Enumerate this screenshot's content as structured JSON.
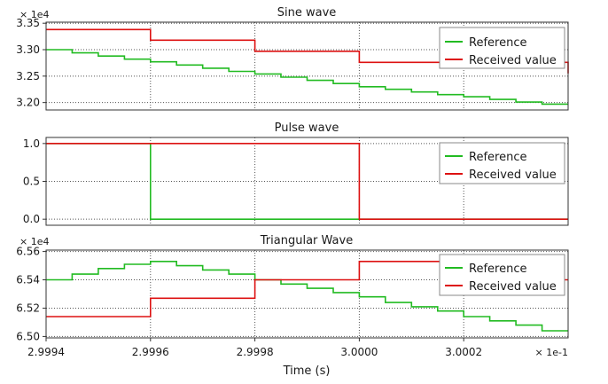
{
  "x_exponent_label": "× 1e-1",
  "x_label": "Time (s)",
  "x_ticks": [
    "2.9994",
    "2.9996",
    "2.9998",
    "3.0000",
    "3.0002"
  ],
  "x_tick_values": [
    2.9994,
    2.9996,
    2.9998,
    3.0,
    3.0002
  ],
  "x_range": [
    2.9994,
    3.0004
  ],
  "colors": {
    "reference": "#22bb22",
    "received": "#dd1111"
  },
  "chart_data": [
    {
      "type": "line",
      "title": "Sine wave",
      "exponent_label": "× 1e4",
      "ylim": [
        3.186,
        3.352
      ],
      "y_ticks": [
        "3.35",
        "3.30",
        "3.25",
        "3.20"
      ],
      "y_tick_values": [
        3.35,
        3.3,
        3.25,
        3.2
      ],
      "legend": [
        "Reference",
        "Received value"
      ],
      "legend_position": "top-right",
      "series": [
        {
          "name": "Reference",
          "step": true,
          "x": [
            2.9994,
            2.99945,
            2.9995,
            2.99955,
            2.9996,
            2.99965,
            2.9997,
            2.99975,
            2.9998,
            2.99985,
            2.9999,
            2.99995,
            3.0,
            3.00005,
            3.0001,
            3.00015,
            3.0002,
            3.00025,
            3.0003,
            3.00035
          ],
          "values": [
            3.3,
            3.294,
            3.288,
            3.282,
            3.277,
            3.271,
            3.265,
            3.259,
            3.254,
            3.248,
            3.242,
            3.236,
            3.23,
            3.225,
            3.22,
            3.215,
            3.211,
            3.206,
            3.201,
            3.197
          ]
        },
        {
          "name": "Received value",
          "step": true,
          "x": [
            2.9994,
            2.9996,
            2.9998,
            3.0,
            3.0004
          ],
          "values": [
            3.338,
            3.318,
            3.297,
            3.276,
            3.255
          ],
          "end_drop": 3.255
        }
      ]
    },
    {
      "type": "line",
      "title": "Pulse wave",
      "exponent_label": "",
      "ylim": [
        -0.08,
        1.08
      ],
      "y_ticks": [
        "1.0",
        "0.5",
        "0.0"
      ],
      "y_tick_values": [
        1.0,
        0.5,
        0.0
      ],
      "legend": [
        "Reference",
        "Received value"
      ],
      "legend_position": "top-right",
      "series": [
        {
          "name": "Reference",
          "step": true,
          "x": [
            2.9994,
            2.9996
          ],
          "values": [
            1.0,
            0.0
          ]
        },
        {
          "name": "Received value",
          "step": true,
          "x": [
            2.9994,
            3.0
          ],
          "values": [
            1.0,
            0.0
          ]
        }
      ]
    },
    {
      "type": "line",
      "title": "Triangular Wave",
      "exponent_label": "× 1e4",
      "ylim": [
        6.499,
        6.561
      ],
      "y_ticks": [
        "6.56",
        "6.54",
        "6.52",
        "6.50"
      ],
      "y_tick_values": [
        6.56,
        6.54,
        6.52,
        6.5
      ],
      "legend": [
        "Reference",
        "Received value"
      ],
      "legend_position": "top-right",
      "series": [
        {
          "name": "Reference",
          "step": true,
          "x": [
            2.9994,
            2.99945,
            2.9995,
            2.99955,
            2.9996,
            2.99965,
            2.9997,
            2.99975,
            2.9998,
            2.99985,
            2.9999,
            2.99995,
            3.0,
            3.00005,
            3.0001,
            3.00015,
            3.0002,
            3.00025,
            3.0003,
            3.00035
          ],
          "values": [
            6.54,
            6.544,
            6.548,
            6.551,
            6.553,
            6.55,
            6.547,
            6.544,
            6.54,
            6.537,
            6.534,
            6.531,
            6.528,
            6.524,
            6.521,
            6.518,
            6.514,
            6.511,
            6.508,
            6.504
          ]
        },
        {
          "name": "Received value",
          "step": true,
          "x": [
            2.9994,
            2.9996,
            2.9998,
            3.0,
            3.0003
          ],
          "values": [
            6.514,
            6.527,
            6.54,
            6.553,
            6.54
          ]
        }
      ]
    }
  ]
}
